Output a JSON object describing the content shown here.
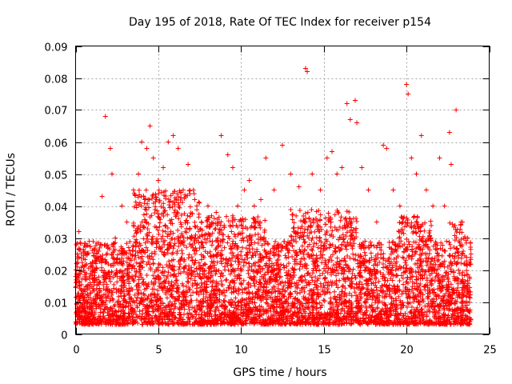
{
  "chart_data": {
    "type": "scatter",
    "title": "Day 195 of 2018, Rate Of TEC Index for receiver p154",
    "xlabel": "GPS time / hours",
    "ylabel": "ROTI / TECUs",
    "xlim": [
      0,
      25
    ],
    "ylim": [
      0,
      0.09
    ],
    "xticks": [
      0,
      5,
      10,
      15,
      20,
      25
    ],
    "xtick_labels": [
      "0",
      "5",
      "10",
      "15",
      "20",
      "25"
    ],
    "yticks": [
      0,
      0.01,
      0.02,
      0.03,
      0.04,
      0.05,
      0.06,
      0.07,
      0.08,
      0.09
    ],
    "ytick_labels": [
      "0",
      "0.01",
      "0.02",
      "0.03",
      "0.04",
      "0.05",
      "0.06",
      "0.07",
      "0.08",
      "0.09"
    ],
    "grid": true,
    "marker": "+",
    "color": "#ff0000",
    "series": [
      {
        "name": "ROTI",
        "points": [
          [
            0.1,
            0.025
          ],
          [
            0.2,
            0.032
          ],
          [
            0.3,
            0.012
          ],
          [
            0.5,
            0.008
          ],
          [
            0.7,
            0.015
          ],
          [
            1.0,
            0.02
          ],
          [
            1.2,
            0.01
          ],
          [
            1.5,
            0.028
          ],
          [
            1.6,
            0.043
          ],
          [
            1.8,
            0.068
          ],
          [
            2.1,
            0.058
          ],
          [
            2.2,
            0.05
          ],
          [
            2.4,
            0.03
          ],
          [
            2.8,
            0.04
          ],
          [
            3.1,
            0.035
          ],
          [
            3.5,
            0.045
          ],
          [
            3.8,
            0.05
          ],
          [
            4.0,
            0.06
          ],
          [
            4.3,
            0.058
          ],
          [
            4.5,
            0.065
          ],
          [
            4.7,
            0.055
          ],
          [
            5.0,
            0.048
          ],
          [
            5.3,
            0.052
          ],
          [
            5.6,
            0.06
          ],
          [
            5.9,
            0.062
          ],
          [
            6.2,
            0.058
          ],
          [
            6.5,
            0.045
          ],
          [
            6.8,
            0.053
          ],
          [
            7.2,
            0.042
          ],
          [
            7.6,
            0.035
          ],
          [
            8.0,
            0.04
          ],
          [
            8.5,
            0.038
          ],
          [
            8.8,
            0.062
          ],
          [
            9.2,
            0.056
          ],
          [
            9.5,
            0.052
          ],
          [
            9.8,
            0.04
          ],
          [
            10.2,
            0.045
          ],
          [
            10.5,
            0.048
          ],
          [
            10.8,
            0.04
          ],
          [
            11.2,
            0.042
          ],
          [
            11.5,
            0.055
          ],
          [
            12.0,
            0.045
          ],
          [
            12.5,
            0.059
          ],
          [
            13.0,
            0.05
          ],
          [
            13.5,
            0.046
          ],
          [
            13.9,
            0.083
          ],
          [
            14.0,
            0.082
          ],
          [
            14.3,
            0.05
          ],
          [
            14.8,
            0.045
          ],
          [
            15.2,
            0.055
          ],
          [
            15.5,
            0.057
          ],
          [
            15.8,
            0.05
          ],
          [
            16.1,
            0.052
          ],
          [
            16.4,
            0.072
          ],
          [
            16.6,
            0.067
          ],
          [
            16.9,
            0.073
          ],
          [
            17.0,
            0.066
          ],
          [
            17.3,
            0.052
          ],
          [
            17.7,
            0.045
          ],
          [
            18.2,
            0.035
          ],
          [
            18.6,
            0.059
          ],
          [
            18.8,
            0.058
          ],
          [
            19.2,
            0.045
          ],
          [
            19.6,
            0.04
          ],
          [
            20.0,
            0.078
          ],
          [
            20.1,
            0.075
          ],
          [
            20.3,
            0.055
          ],
          [
            20.6,
            0.05
          ],
          [
            20.9,
            0.062
          ],
          [
            21.2,
            0.045
          ],
          [
            21.6,
            0.04
          ],
          [
            22.0,
            0.055
          ],
          [
            22.3,
            0.04
          ],
          [
            22.6,
            0.063
          ],
          [
            22.7,
            0.053
          ],
          [
            23.0,
            0.07
          ],
          [
            23.3,
            0.035
          ],
          [
            23.7,
            0.03
          ],
          [
            23.9,
            0.025
          ]
        ]
      }
    ]
  }
}
